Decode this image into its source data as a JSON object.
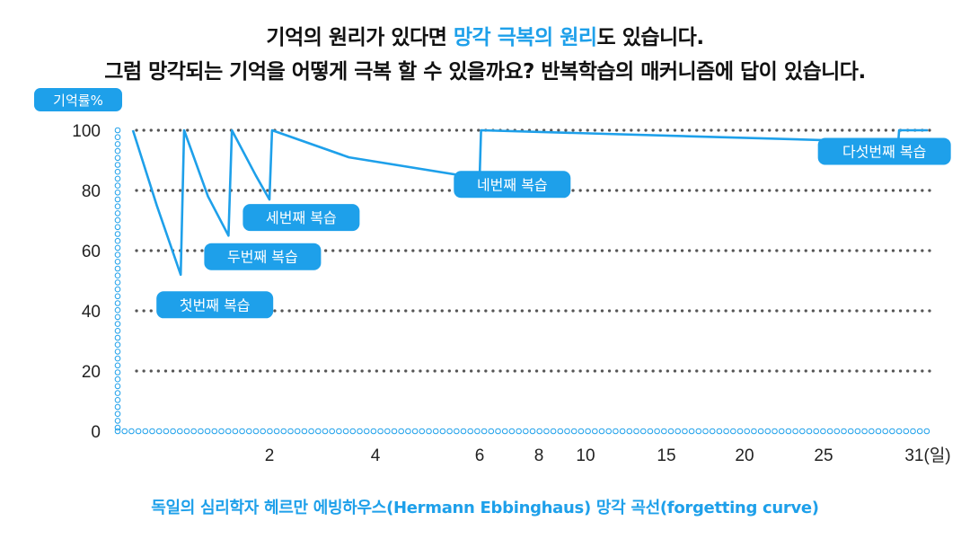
{
  "headline": {
    "line1": {
      "before": "기억의 원리가 있다면 ",
      "highlight": "망각 극복의 원리",
      "after": "도 있습니다."
    },
    "line2": "그럼 망각되는 기억을 어떻게 극복 할 수 있을까요? 반복학습의 매커니즘에 답이 있습니다."
  },
  "caption": "독일의 심리학자 헤르만 에빙하우스(Hermann Ebbinghaus) 망각 곡선(forgetting curve)",
  "colors": {
    "accent": "#1ea0ea",
    "text": "#111111",
    "grid": "#555555"
  },
  "chart_data": {
    "type": "line",
    "ylabel": "기억률%",
    "yticks": [
      "100",
      "80",
      "60",
      "40",
      "20",
      "0"
    ],
    "xticks": [
      "2",
      "4",
      "6",
      "8",
      "10",
      "15",
      "20",
      "25",
      "31(일)"
    ],
    "ylim": [
      0,
      100
    ],
    "grid": "horizontal dotted",
    "series": [
      {
        "points": [
          {
            "day": 0,
            "retention": 100
          },
          {
            "day": 0.35,
            "retention": 75
          },
          {
            "day": 0.7,
            "retention": 52
          },
          {
            "day": 0.75,
            "retention": 100
          },
          {
            "day": 1.1,
            "retention": 78
          },
          {
            "day": 1.4,
            "retention": 65
          },
          {
            "day": 1.45,
            "retention": 100
          },
          {
            "day": 1.8,
            "retention": 85
          },
          {
            "day": 2,
            "retention": 77
          },
          {
            "day": 2.05,
            "retention": 100
          },
          {
            "day": 3.5,
            "retention": 91
          },
          {
            "day": 6,
            "retention": 84
          },
          {
            "day": 6.05,
            "retention": 100
          },
          {
            "day": 29.3,
            "retention": 96
          },
          {
            "day": 29.35,
            "retention": 100
          },
          {
            "day": 31,
            "retention": 100
          }
        ]
      }
    ],
    "annotations": [
      {
        "text": "첫번째 복습",
        "day": 1.2,
        "retention": 42
      },
      {
        "text": "두번째 복습",
        "day": 1.9,
        "retention": 58
      },
      {
        "text": "세번째 복습",
        "day": 2.6,
        "retention": 71
      },
      {
        "text": "네번째 복습",
        "day": 7.1,
        "retention": 82
      },
      {
        "text": "다섯번째 복습",
        "day": 28.5,
        "retention": 93
      }
    ]
  }
}
